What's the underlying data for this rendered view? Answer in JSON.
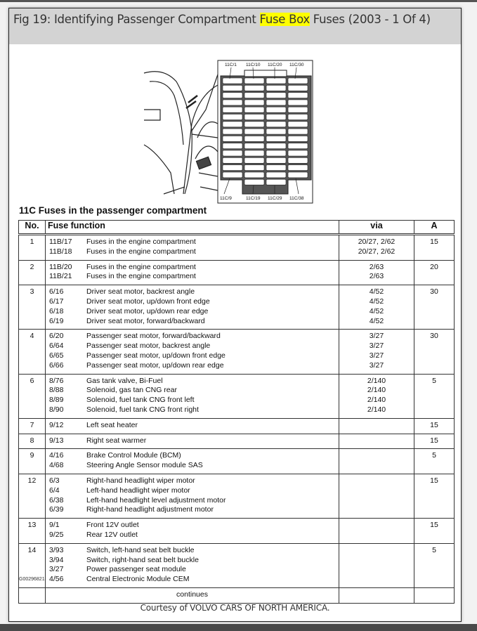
{
  "title": {
    "before": "Fig 19: Identifying Passenger Compartment ",
    "highlight": "Fuse Box",
    "after": " Fuses (2003 - 1 Of 4)"
  },
  "highlight_color": "#ffff00",
  "diagram": {
    "labels_top": [
      "11C/1",
      "11C/10",
      "11C/20",
      "11C/30"
    ],
    "labels_bottom": [
      "11C/9",
      "11C/19",
      "11C/29",
      "11C/38"
    ]
  },
  "table": {
    "title": "11C Fuses in the passenger compartment",
    "headers": {
      "no": "No.",
      "function": "Fuse function",
      "via": "via",
      "a": "A"
    },
    "groups": [
      {
        "no": "1",
        "a": "15",
        "items": [
          [
            "11B/17",
            "Fuses in the engine compartment",
            "20/27, 2/62"
          ],
          [
            "11B/18",
            "Fuses in the engine compartment",
            "20/27, 2/62"
          ]
        ]
      },
      {
        "no": "2",
        "a": "20",
        "items": [
          [
            "11B/20",
            "Fuses in the engine compartment",
            "2/63"
          ],
          [
            "11B/21",
            "Fuses in the engine compartment",
            "2/63"
          ]
        ]
      },
      {
        "no": "3",
        "a": "30",
        "items": [
          [
            "6/16",
            "Driver seat motor, backrest angle",
            "4/52"
          ],
          [
            "6/17",
            "Driver seat motor, up/down front edge",
            "4/52"
          ],
          [
            "6/18",
            "Driver seat motor, up/down rear edge",
            "4/52"
          ],
          [
            "6/19",
            "Driver seat motor, forward/backward",
            "4/52"
          ]
        ]
      },
      {
        "no": "4",
        "a": "30",
        "items": [
          [
            "6/20",
            "Passenger seat motor, forward/backward",
            "3/27"
          ],
          [
            "6/64",
            "Passenger seat motor, backrest angle",
            "3/27"
          ],
          [
            "6/65",
            "Passenger seat motor, up/down front edge",
            "3/27"
          ],
          [
            "6/66",
            "Passenger seat motor, up/down rear edge",
            "3/27"
          ]
        ]
      },
      {
        "no": "6",
        "a": "5",
        "items": [
          [
            "8/76",
            "Gas tank valve, Bi-Fuel",
            "2/140"
          ],
          [
            "8/88",
            "Solenoid, gas tan CNG rear",
            "2/140"
          ],
          [
            "8/89",
            "Solenoid, fuel tank CNG front left",
            "2/140"
          ],
          [
            "8/90",
            "Solenoid, fuel tank CNG front right",
            "2/140"
          ]
        ]
      },
      {
        "no": "7",
        "a": "15",
        "items": [
          [
            "9/12",
            "Left seat heater",
            ""
          ]
        ]
      },
      {
        "no": "8",
        "a": "15",
        "items": [
          [
            "9/13",
            "Right seat warmer",
            ""
          ]
        ]
      },
      {
        "no": "9",
        "a": "5",
        "items": [
          [
            "4/16",
            "Brake Control Module (BCM)",
            ""
          ],
          [
            "4/68",
            "Steering Angle Sensor module SAS",
            ""
          ]
        ]
      },
      {
        "no": "12",
        "a": "15",
        "items": [
          [
            "6/3",
            "Right-hand headlight wiper motor",
            ""
          ],
          [
            "6/4",
            "Left-hand headlight wiper motor",
            ""
          ],
          [
            "6/38",
            "Left-hand headlight level adjustment motor",
            ""
          ],
          [
            "6/39",
            "Right-hand headlight adjustment motor",
            ""
          ]
        ]
      },
      {
        "no": "13",
        "a": "15",
        "items": [
          [
            "9/1",
            "Front 12V outlet",
            ""
          ],
          [
            "9/25",
            "Rear 12V outlet",
            ""
          ]
        ]
      },
      {
        "no": "14",
        "a": "5",
        "items": [
          [
            "3/93",
            "Switch, left-hand seat belt buckle",
            ""
          ],
          [
            "3/94",
            "Switch, right-hand seat belt buckle",
            ""
          ],
          [
            "3/27",
            "Power passenger seat module",
            ""
          ],
          [
            "4/56",
            "Central Electronic Module CEM",
            ""
          ]
        ]
      }
    ],
    "continues": "continues"
  },
  "figure_id": "G00296821",
  "courtesy": "Courtesy of VOLVO CARS OF NORTH AMERICA."
}
